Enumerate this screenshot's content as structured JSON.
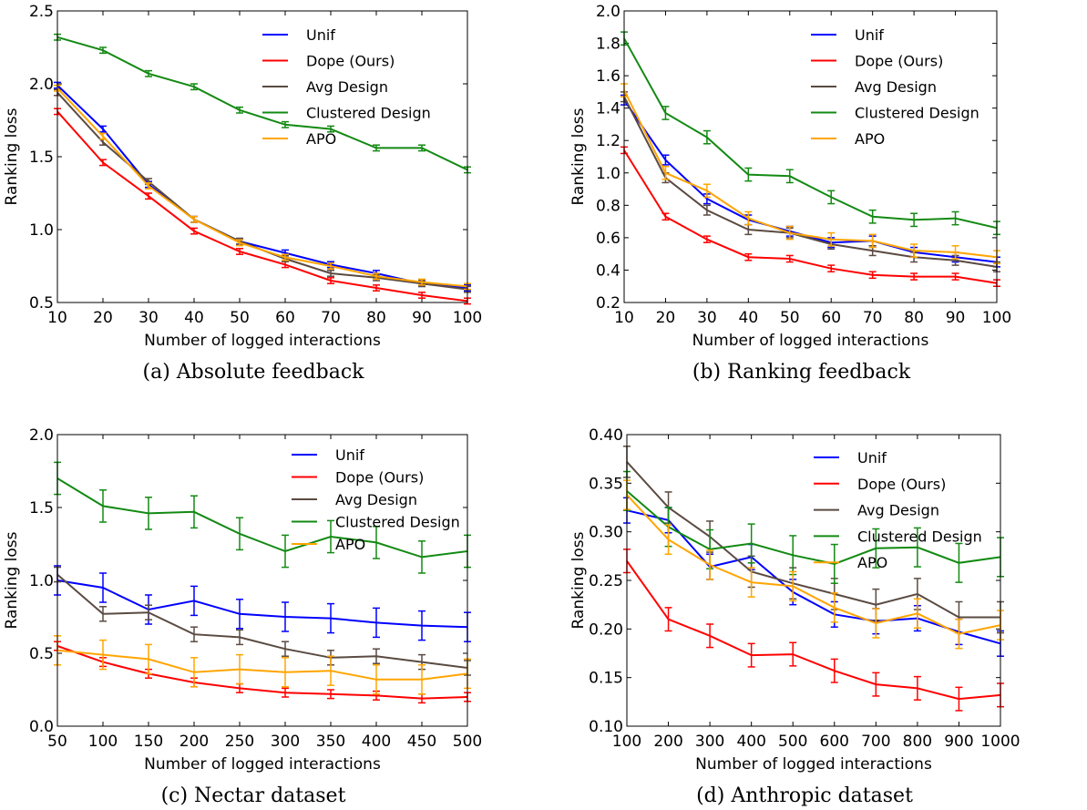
{
  "chart_data": [
    {
      "type": "line",
      "caption": "(a)  Absolute feedback",
      "xlabel": "Number of logged interactions",
      "ylabel": "Ranking loss",
      "xlim": [
        10,
        100
      ],
      "ylim": [
        0.5,
        2.5
      ],
      "x_ticks": [
        "10",
        "20",
        "30",
        "40",
        "50",
        "60",
        "70",
        "80",
        "90",
        "100"
      ],
      "y_ticks": [
        "0.5",
        "1.0",
        "1.5",
        "2.0",
        "2.5"
      ],
      "legend_placement": "top-right",
      "x": [
        10,
        20,
        30,
        40,
        50,
        60,
        70,
        80,
        90,
        100
      ],
      "series": [
        {
          "name": "Unif",
          "color": "#0000ff",
          "values": [
            1.99,
            1.69,
            1.31,
            1.07,
            0.92,
            0.84,
            0.76,
            0.7,
            0.63,
            0.6
          ],
          "err": 0.02
        },
        {
          "name": "Dope (Ours)",
          "color": "#ff0000",
          "values": [
            1.81,
            1.46,
            1.23,
            0.99,
            0.85,
            0.76,
            0.65,
            0.6,
            0.55,
            0.51
          ],
          "err": 0.02
        },
        {
          "name": "Avg Design",
          "color": "#5b4a42",
          "values": [
            1.94,
            1.6,
            1.33,
            1.07,
            0.92,
            0.8,
            0.7,
            0.67,
            0.63,
            0.59
          ],
          "err": 0.02
        },
        {
          "name": "Clustered Design",
          "color": "#138a13",
          "values": [
            2.32,
            2.23,
            2.07,
            1.98,
            1.82,
            1.72,
            1.69,
            1.56,
            1.56,
            1.41
          ],
          "err": 0.02
        },
        {
          "name": "APO",
          "color": "#ffa500",
          "values": [
            1.97,
            1.64,
            1.3,
            1.07,
            0.91,
            0.81,
            0.75,
            0.68,
            0.64,
            0.61
          ],
          "err": 0.02
        }
      ]
    },
    {
      "type": "line",
      "caption": "(b)  Ranking feedback",
      "xlabel": "Number of logged interactions",
      "ylabel": "Ranking loss",
      "xlim": [
        10,
        100
      ],
      "ylim": [
        0.2,
        2.0
      ],
      "x_ticks": [
        "10",
        "20",
        "30",
        "40",
        "50",
        "60",
        "70",
        "80",
        "90",
        "100"
      ],
      "y_ticks": [
        "0.2",
        "0.4",
        "0.6",
        "0.8",
        "1.0",
        "1.2",
        "1.4",
        "1.6",
        "1.8",
        "2.0"
      ],
      "legend_placement": "top-right",
      "x": [
        10,
        20,
        30,
        40,
        50,
        60,
        70,
        80,
        90,
        100
      ],
      "series": [
        {
          "name": "Unif",
          "color": "#0000ff",
          "values": [
            1.45,
            1.08,
            0.84,
            0.71,
            0.64,
            0.57,
            0.58,
            0.51,
            0.48,
            0.45
          ],
          "err": 0.03
        },
        {
          "name": "Dope (Ours)",
          "color": "#ff0000",
          "values": [
            1.14,
            0.73,
            0.59,
            0.48,
            0.47,
            0.41,
            0.37,
            0.36,
            0.36,
            0.32
          ],
          "err": 0.02
        },
        {
          "name": "Avg Design",
          "color": "#5b4a42",
          "values": [
            1.47,
            0.97,
            0.77,
            0.65,
            0.63,
            0.56,
            0.52,
            0.48,
            0.46,
            0.42
          ],
          "err": 0.03
        },
        {
          "name": "Clustered Design",
          "color": "#138a13",
          "values": [
            1.83,
            1.37,
            1.22,
            0.99,
            0.98,
            0.85,
            0.73,
            0.71,
            0.72,
            0.66
          ],
          "err": 0.04
        },
        {
          "name": "APO",
          "color": "#ffa500",
          "values": [
            1.51,
            1.0,
            0.89,
            0.72,
            0.63,
            0.59,
            0.58,
            0.52,
            0.51,
            0.48
          ],
          "err": 0.04
        }
      ]
    },
    {
      "type": "line",
      "caption": "(c)  Nectar dataset",
      "xlabel": "Number of logged interactions",
      "ylabel": "Ranking loss",
      "xlim": [
        50,
        500
      ],
      "ylim": [
        0.0,
        2.0
      ],
      "x_ticks": [
        "50",
        "100",
        "150",
        "200",
        "250",
        "300",
        "350",
        "400",
        "450",
        "500"
      ],
      "y_ticks": [
        "0.0",
        "0.5",
        "1.0",
        "1.5",
        "2.0"
      ],
      "legend_placement": "top-right",
      "x": [
        50,
        100,
        150,
        200,
        250,
        300,
        350,
        400,
        450,
        500
      ],
      "series": [
        {
          "name": "Unif",
          "color": "#0000ff",
          "values": [
            1.0,
            0.95,
            0.8,
            0.86,
            0.77,
            0.75,
            0.74,
            0.71,
            0.69,
            0.68
          ],
          "err": 0.1
        },
        {
          "name": "Dope (Ours)",
          "color": "#ff0000",
          "values": [
            0.55,
            0.44,
            0.36,
            0.3,
            0.26,
            0.23,
            0.22,
            0.21,
            0.19,
            0.2
          ],
          "err": 0.03
        },
        {
          "name": "Avg Design",
          "color": "#5b4a42",
          "values": [
            1.04,
            0.77,
            0.78,
            0.63,
            0.61,
            0.53,
            0.47,
            0.48,
            0.44,
            0.4
          ],
          "err": 0.05
        },
        {
          "name": "Clustered Design",
          "color": "#138a13",
          "values": [
            1.7,
            1.51,
            1.46,
            1.47,
            1.32,
            1.2,
            1.3,
            1.26,
            1.16,
            1.2
          ],
          "err": 0.11
        },
        {
          "name": "APO",
          "color": "#ffa500",
          "values": [
            0.52,
            0.49,
            0.46,
            0.37,
            0.39,
            0.37,
            0.38,
            0.32,
            0.32,
            0.36
          ],
          "err": 0.1
        }
      ]
    },
    {
      "type": "line",
      "caption": "(d)  Anthropic dataset",
      "xlabel": "Number of logged interactions",
      "ylabel": "Ranking loss",
      "xlim": [
        100,
        1000
      ],
      "ylim": [
        0.1,
        0.4
      ],
      "x_ticks": [
        "100",
        "200",
        "300",
        "400",
        "500",
        "600",
        "700",
        "800",
        "900",
        "1000"
      ],
      "y_ticks": [
        "0.10",
        "0.15",
        "0.20",
        "0.25",
        "0.30",
        "0.35",
        "0.40"
      ],
      "legend_placement": "top-right",
      "x": [
        100,
        200,
        300,
        400,
        500,
        600,
        700,
        800,
        900,
        1000
      ],
      "series": [
        {
          "name": "Unif",
          "color": "#0000ff",
          "values": [
            0.322,
            0.312,
            0.264,
            0.274,
            0.238,
            0.215,
            0.208,
            0.211,
            0.197,
            0.185
          ],
          "err": 0.013
        },
        {
          "name": "Dope (Ours)",
          "color": "#ff0000",
          "values": [
            0.27,
            0.21,
            0.193,
            0.173,
            0.174,
            0.157,
            0.143,
            0.139,
            0.128,
            0.132
          ],
          "err": 0.012
        },
        {
          "name": "Avg Design",
          "color": "#5b4a42",
          "values": [
            0.372,
            0.325,
            0.295,
            0.259,
            0.247,
            0.236,
            0.225,
            0.236,
            0.212,
            0.212
          ],
          "err": 0.016
        },
        {
          "name": "Clustered Design",
          "color": "#138a13",
          "values": [
            0.342,
            0.305,
            0.282,
            0.288,
            0.276,
            0.267,
            0.283,
            0.284,
            0.268,
            0.274
          ],
          "err": 0.02
        },
        {
          "name": "APO",
          "color": "#ffa500",
          "values": [
            0.338,
            0.292,
            0.266,
            0.248,
            0.244,
            0.222,
            0.206,
            0.216,
            0.195,
            0.204
          ],
          "err": 0.015
        }
      ]
    }
  ]
}
